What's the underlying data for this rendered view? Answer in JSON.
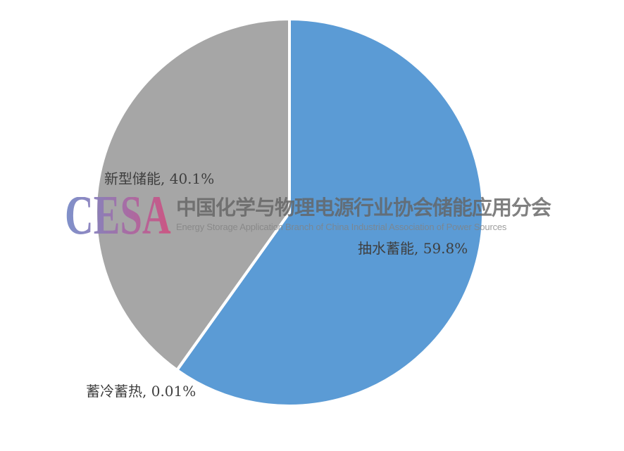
{
  "chart_data": {
    "type": "pie",
    "title": "",
    "direction": "clockwise",
    "start_angle_deg": 0,
    "legend": "none",
    "grid": false,
    "slice_border_color": "#ffffff",
    "label_text_color": "#3f3f3f",
    "background_color": "#ffffff",
    "slices": [
      {
        "label": "抽水蓄能",
        "value": 59.8,
        "data_label": "抽水蓄能, 59.8%",
        "color": "#5b9bd5",
        "label_position": "inside"
      },
      {
        "label": "蓄冷蓄热",
        "value": 0.01,
        "data_label": "蓄冷蓄热, 0.01%",
        "color": "#ed7d31",
        "label_position": "outside"
      },
      {
        "label": "新型储能",
        "value": 40.1,
        "data_label": "新型储能, 40.1%",
        "color": "#a6a6a6",
        "label_position": "inside"
      }
    ]
  },
  "watermark": {
    "logo_text": "CESA",
    "logo_gradient": [
      "#7488c6",
      "#8d7ab8",
      "#b0639e",
      "#d04f7f"
    ],
    "title_cn": "中国化学与物理电源行业协会储能应用分会",
    "subtitle_en": "Energy Storage Application Branch of China Industrial Association of Power Sources",
    "title_color": "rgba(100,100,100,0.82)",
    "subtitle_color": "rgba(130,130,130,0.78)"
  }
}
